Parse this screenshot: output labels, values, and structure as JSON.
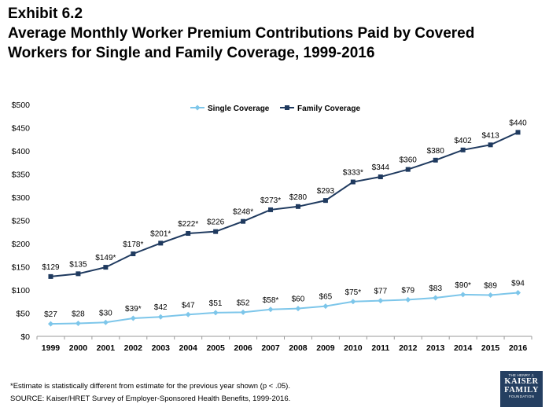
{
  "header": {
    "exhibit": "Exhibit 6.2",
    "title_line1": "Average Monthly Worker Premium Contributions Paid by Covered",
    "title_line2": "Workers for Single and Family Coverage, 1999-2016"
  },
  "chart_data": {
    "type": "line",
    "title": "Average Monthly Worker Premium Contributions Paid by Covered Workers for Single and Family Coverage, 1999-2016",
    "categories": [
      "1999",
      "2000",
      "2001",
      "2002",
      "2003",
      "2004",
      "2005",
      "2006",
      "2007",
      "2008",
      "2009",
      "2010",
      "2011",
      "2012",
      "2013",
      "2014",
      "2015",
      "2016"
    ],
    "ylim": [
      0,
      500
    ],
    "yticks": [
      "$0",
      "$50",
      "$100",
      "$150",
      "$200",
      "$250",
      "$300",
      "$350",
      "$400",
      "$450",
      "$500"
    ],
    "legend_position": "top-center",
    "series": [
      {
        "name": "Single Coverage",
        "color": "#7dc6ea",
        "marker": "diamond",
        "values": [
          27,
          28,
          30,
          39,
          42,
          47,
          51,
          52,
          58,
          60,
          65,
          75,
          77,
          79,
          83,
          90,
          89,
          94
        ],
        "labels": [
          "$27",
          "$28",
          "$30",
          "$39*",
          "$42",
          "$47",
          "$51",
          "$52",
          "$58*",
          "$60",
          "$65",
          "$75*",
          "$77",
          "$79",
          "$83",
          "$90*",
          "$89",
          "$94"
        ]
      },
      {
        "name": "Family Coverage",
        "color": "#1f3a5f",
        "marker": "square",
        "values": [
          129,
          135,
          149,
          178,
          201,
          222,
          226,
          248,
          273,
          280,
          293,
          333,
          344,
          360,
          380,
          402,
          413,
          440
        ],
        "labels": [
          "$129",
          "$135",
          "$149*",
          "$178*",
          "$201*",
          "$222*",
          "$226",
          "$248*",
          "$273*",
          "$280",
          "$293",
          "$333*",
          "$344",
          "$360",
          "$380",
          "$402",
          "$413",
          "$440"
        ]
      }
    ]
  },
  "footnote": "*Estimate is statistically different from estimate for the previous year shown (p < .05).",
  "source": "SOURCE:  Kaiser/HRET Survey of Employer-Sponsored Health Benefits, 1999-2016.",
  "logo": {
    "line1": "THE HENRY J.",
    "line2": "KAISER",
    "line3": "FAMILY",
    "line4": "FOUNDATION"
  }
}
